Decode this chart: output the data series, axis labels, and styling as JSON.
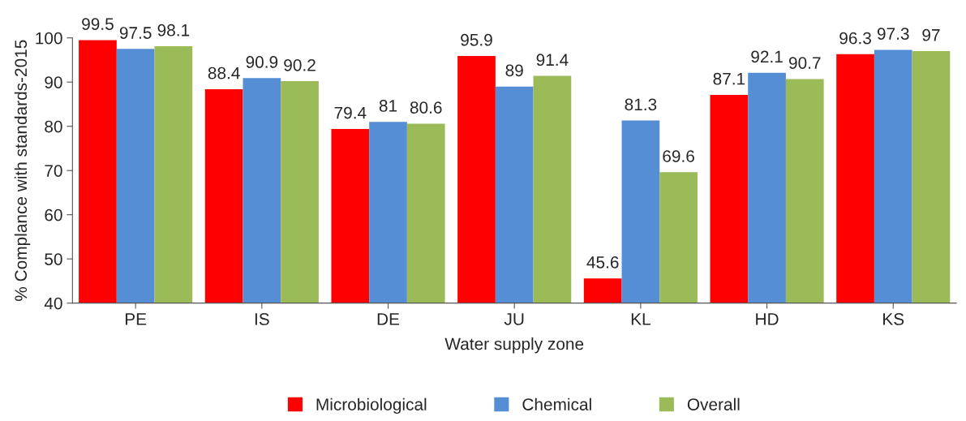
{
  "chart_data": {
    "type": "bar",
    "xlabel": "Water supply zone",
    "ylabel": "% Complance with standards-2015",
    "categories": [
      "PE",
      "IS",
      "DE",
      "JU",
      "KL",
      "HD",
      "KS"
    ],
    "series": [
      {
        "name": "Microbiological",
        "color": "#ff0000",
        "values": [
          99.5,
          88.4,
          79.4,
          95.9,
          45.6,
          87.1,
          96.3
        ]
      },
      {
        "name": "Chemical",
        "color": "#558ed5",
        "values": [
          97.5,
          90.9,
          81,
          89,
          81.3,
          92.1,
          97.3
        ]
      },
      {
        "name": "Overall",
        "color": "#9bbb59",
        "values": [
          98.1,
          90.2,
          80.6,
          91.4,
          69.6,
          90.7,
          97
        ]
      }
    ],
    "ylim": [
      40,
      100
    ],
    "yticks": [
      40,
      50,
      60,
      70,
      80,
      90,
      100
    ],
    "data_labels": true,
    "grid": false,
    "legend": "bottom"
  }
}
